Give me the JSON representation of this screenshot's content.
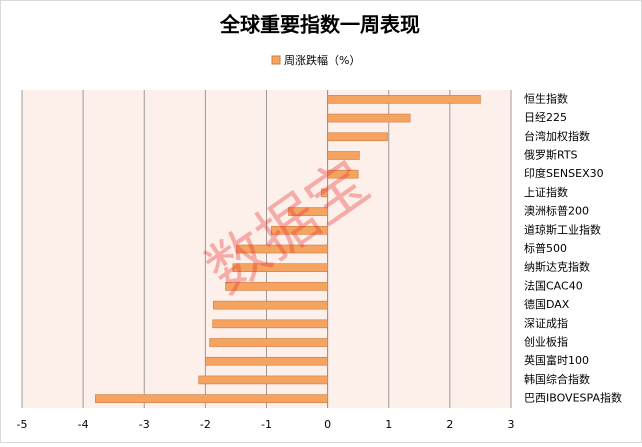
{
  "chart_data": {
    "type": "hbar",
    "title": "全球重要指数一周表现",
    "categories": [
      "恒生指数",
      "日经225",
      "台湾加权指数",
      "俄罗斯RTS",
      "印度SENSEX30",
      "上证指数",
      "澳洲标普200",
      "道琼斯工业指数",
      "标普500",
      "纳斯达克指数",
      "法国CAC40",
      "德国DAX",
      "深证成指",
      "创业板指",
      "英国富时100",
      "韩国综合指数",
      "巴西IBOVESPA指数"
    ],
    "series": [
      {
        "name": "周涨跌幅（%）",
        "color": "#f4a460",
        "values": [
          2.5,
          1.35,
          0.98,
          0.52,
          0.5,
          -0.1,
          -0.64,
          -0.92,
          -1.49,
          -1.55,
          -1.67,
          -1.87,
          -1.88,
          -1.93,
          -2.0,
          -2.11,
          -3.8
        ]
      }
    ],
    "xlim": [
      -5,
      3
    ],
    "xticks": [
      -5,
      -4,
      -3,
      -2,
      -1,
      0,
      1,
      2,
      3
    ],
    "grid": true,
    "watermark": "数据宝"
  }
}
